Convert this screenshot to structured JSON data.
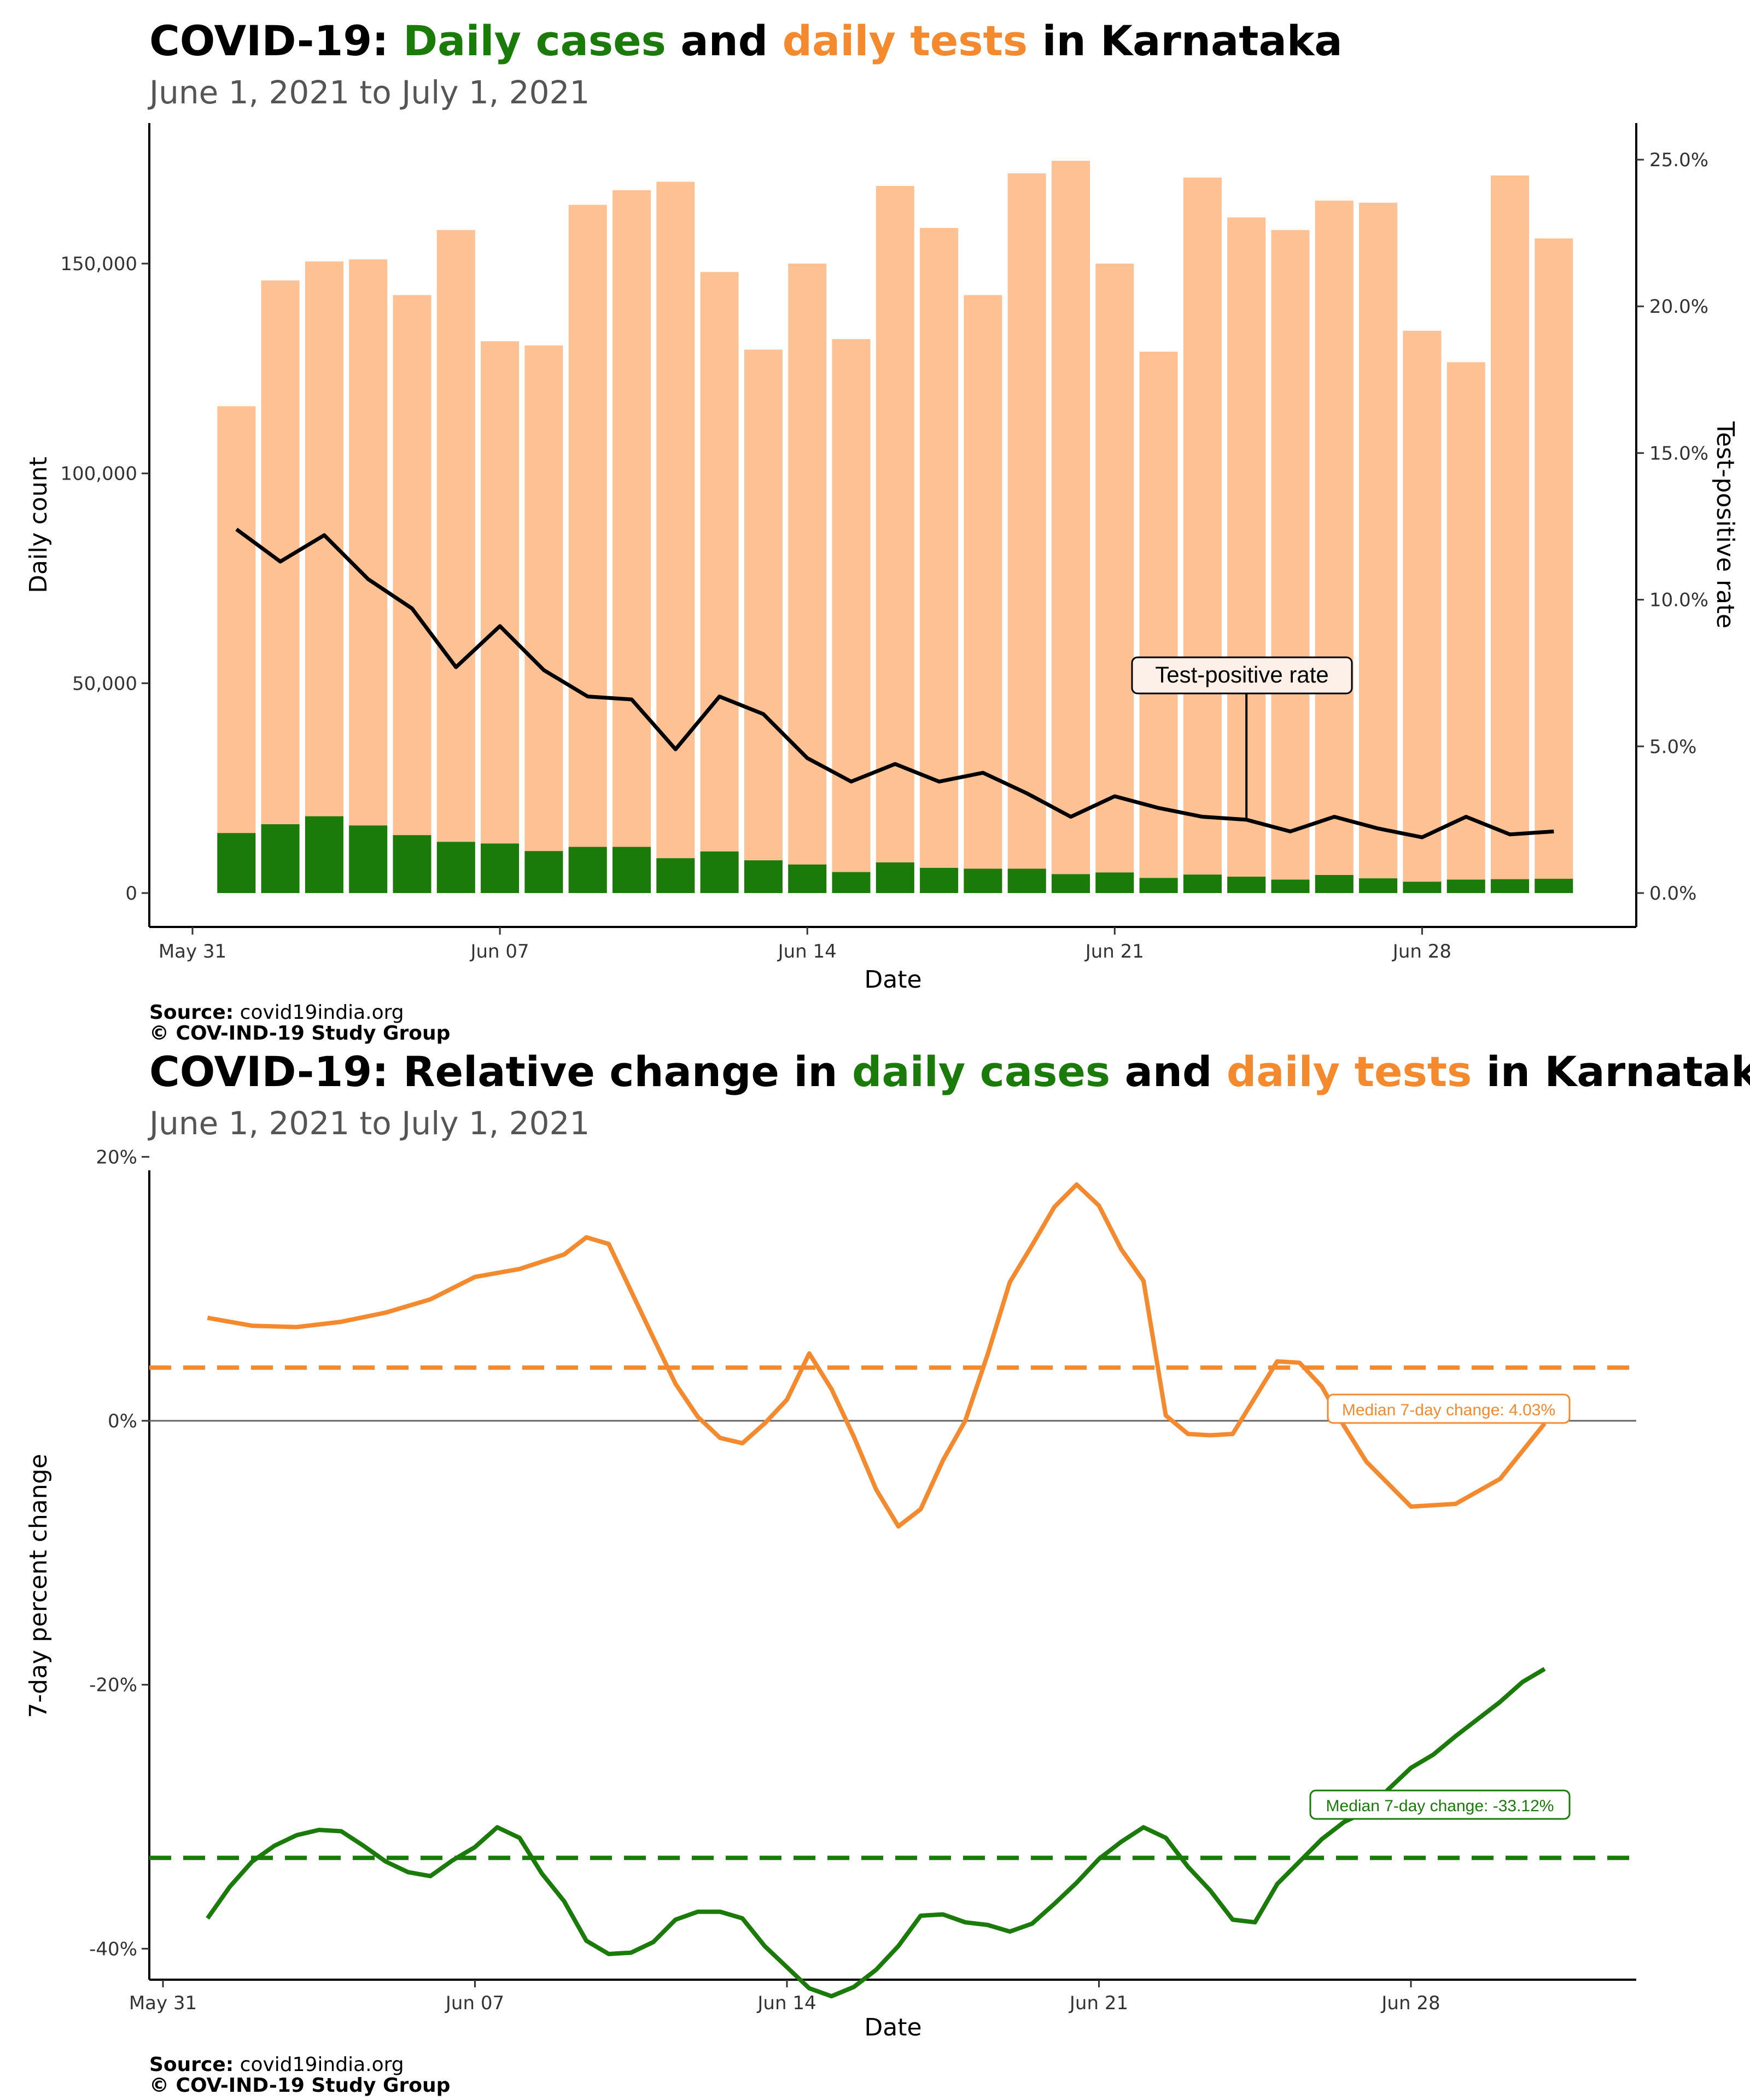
{
  "colors": {
    "cases": "#1a7a0a",
    "tests_bar": "#fdc193",
    "tests_line": "#f4892e",
    "tpr_line": "#000000"
  },
  "panel1": {
    "title_prefix": "COVID-19: ",
    "title_cases": "Daily cases",
    "title_and": " and ",
    "title_tests": "daily tests",
    "title_suffix": " in Karnataka",
    "subtitle": "June  1, 2021 to July  1, 2021",
    "source_label": "Source:",
    "source_value": " covid19india.org",
    "copyright": "© COV-IND-19 Study Group"
  },
  "panel2": {
    "title_prefix": "COVID-19: Relative change in ",
    "title_cases": "daily cases",
    "title_and": " and ",
    "title_tests": "daily tests",
    "title_suffix": " in Karnataka",
    "subtitle": "June  1, 2021 to July  1, 2021",
    "source_label": "Source:",
    "source_value": " covid19india.org",
    "copyright": "© COV-IND-19 Study Group"
  },
  "chart_data": [
    {
      "type": "bar",
      "xlabel": "Date",
      "ylabel": "Daily count",
      "y2label": "Test-positive rate",
      "ylim": [
        0,
        175000
      ],
      "y2lim": [
        0,
        0.26
      ],
      "x_ticks": [
        "May 31",
        "Jun 07",
        "Jun 14",
        "Jun 21",
        "Jun 28"
      ],
      "y_ticks": [
        "0",
        "50,000",
        "100,000",
        "150,000"
      ],
      "y2_ticks": [
        "0.0%",
        "5.0%",
        "10.0%",
        "15.0%",
        "20.0%",
        "25.0%"
      ],
      "annotation": "Test-positive rate",
      "annotation_date_index": 23,
      "dates": [
        "Jun 01",
        "Jun 02",
        "Jun 03",
        "Jun 04",
        "Jun 05",
        "Jun 06",
        "Jun 07",
        "Jun 08",
        "Jun 09",
        "Jun 10",
        "Jun 11",
        "Jun 12",
        "Jun 13",
        "Jun 14",
        "Jun 15",
        "Jun 16",
        "Jun 17",
        "Jun 18",
        "Jun 19",
        "Jun 20",
        "Jun 21",
        "Jun 22",
        "Jun 23",
        "Jun 24",
        "Jun 25",
        "Jun 26",
        "Jun 27",
        "Jun 28",
        "Jun 29",
        "Jun 30",
        "Jul 01"
      ],
      "series": [
        {
          "name": "daily tests",
          "values": [
            116000,
            146000,
            150500,
            151000,
            142500,
            158000,
            131500,
            130500,
            164000,
            167500,
            169500,
            148000,
            129500,
            150000,
            132000,
            168500,
            158500,
            142500,
            171500,
            174500,
            150000,
            129000,
            170500,
            161000,
            158000,
            165000,
            164500,
            134000,
            126500,
            171000,
            156000
          ]
        },
        {
          "name": "daily cases",
          "values": [
            14300,
            16400,
            18300,
            16100,
            13800,
            12200,
            11800,
            10000,
            11000,
            11000,
            8300,
            9900,
            7800,
            6800,
            5000,
            7300,
            6000,
            5800,
            5800,
            4500,
            4900,
            3600,
            4400,
            3900,
            3200,
            4300,
            3500,
            2700,
            3200,
            3300,
            3400
          ]
        },
        {
          "name": "Test-positive rate",
          "values": [
            0.124,
            0.113,
            0.122,
            0.107,
            0.097,
            0.077,
            0.091,
            0.076,
            0.067,
            0.066,
            0.049,
            0.067,
            0.061,
            0.046,
            0.038,
            0.044,
            0.038,
            0.041,
            0.034,
            0.026,
            0.033,
            0.029,
            0.026,
            0.025,
            0.021,
            0.026,
            0.022,
            0.019,
            0.026,
            0.02,
            0.021
          ]
        }
      ]
    },
    {
      "type": "line",
      "xlabel": "Date",
      "ylabel": "7-day percent change",
      "ylim": [
        -46,
        21
      ],
      "x_ticks": [
        "May 31",
        "Jun 07",
        "Jun 14",
        "Jun 21",
        "Jun 28"
      ],
      "y_ticks": [
        "-40%",
        "-20%",
        "0%",
        "20%"
      ],
      "x_range_days": [
        -1.5,
        31.5
      ],
      "series": [
        {
          "name": "daily tests",
          "x": [
            1,
            2,
            3,
            4,
            5,
            6,
            7,
            7.5,
            8,
            9,
            9.5,
            10,
            11,
            11.5,
            12,
            12.5,
            13,
            13.5,
            14,
            14.5,
            15,
            15.5,
            16,
            16.5,
            17,
            17.5,
            18,
            18.5,
            19,
            19.5,
            20,
            20.5,
            21,
            21.5,
            22,
            22.5,
            23,
            23.5,
            24,
            25,
            25.5,
            26,
            26.5,
            27,
            28,
            29,
            30,
            31
          ],
          "values": [
            7.8,
            7.2,
            7.1,
            7.5,
            8.2,
            9.2,
            10.9,
            11.2,
            11.5,
            12.6,
            13.9,
            13.4,
            6.3,
            2.8,
            0.3,
            -1.3,
            -1.7,
            -0.2,
            1.6,
            5.1,
            2.4,
            -1.2,
            -5.2,
            -8.0,
            -6.7,
            -3.0,
            0,
            5.0,
            10.5,
            13.3,
            16.2,
            17.9,
            16.3,
            13.0,
            10.6,
            0.4,
            -1.0,
            -1.1,
            -1.0,
            4.5,
            4.4,
            2.6,
            -0.4,
            -3.1,
            -6.5,
            -6.3,
            -4.4,
            -0.2
          ]
        },
        {
          "name": "daily cases",
          "x": [
            1,
            1.5,
            2,
            2.5,
            3,
            3.5,
            4,
            4.5,
            5,
            5.5,
            6,
            6.5,
            7,
            7.5,
            8,
            8.5,
            9,
            9.5,
            10,
            10.5,
            11,
            11.5,
            12,
            12.5,
            13,
            13.5,
            14,
            14.5,
            15,
            15.5,
            16,
            16.5,
            17,
            17.5,
            18,
            18.5,
            19,
            19.5,
            20,
            20.5,
            21,
            21.5,
            22,
            22.5,
            23,
            23.5,
            24,
            24.5,
            25,
            25.5,
            26,
            26.5,
            27,
            27.5,
            28,
            28.5,
            29,
            29.5,
            30,
            30.5,
            31
          ],
          "values": [
            -37.7,
            -35.3,
            -33.4,
            -32.2,
            -31.4,
            -31.0,
            -31.1,
            -32.2,
            -33.4,
            -34.2,
            -34.5,
            -33.3,
            -32.3,
            -30.8,
            -31.6,
            -34.3,
            -36.4,
            -39.4,
            -40.4,
            -40.3,
            -39.5,
            -37.8,
            -37.2,
            -37.2,
            -37.7,
            -39.8,
            -41.4,
            -43.0,
            -43.6,
            -42.9,
            -41.6,
            -39.8,
            -37.5,
            -37.4,
            -38.0,
            -38.2,
            -38.7,
            -38.1,
            -36.6,
            -35.0,
            -33.2,
            -31.9,
            -30.8,
            -31.6,
            -33.8,
            -35.6,
            -37.8,
            -38.0,
            -35.1,
            -33.4,
            -31.7,
            -30.4,
            -29.6,
            -27.9,
            -26.3,
            -25.3,
            -23.9,
            -22.6,
            -21.3,
            -19.8,
            -18.8
          ]
        }
      ],
      "reference_lines": [
        {
          "name": "Median 7-day change: 4.03%",
          "value": 4.03
        },
        {
          "name": "Median 7-day change: -33.12%",
          "value": -33.12
        }
      ]
    }
  ]
}
